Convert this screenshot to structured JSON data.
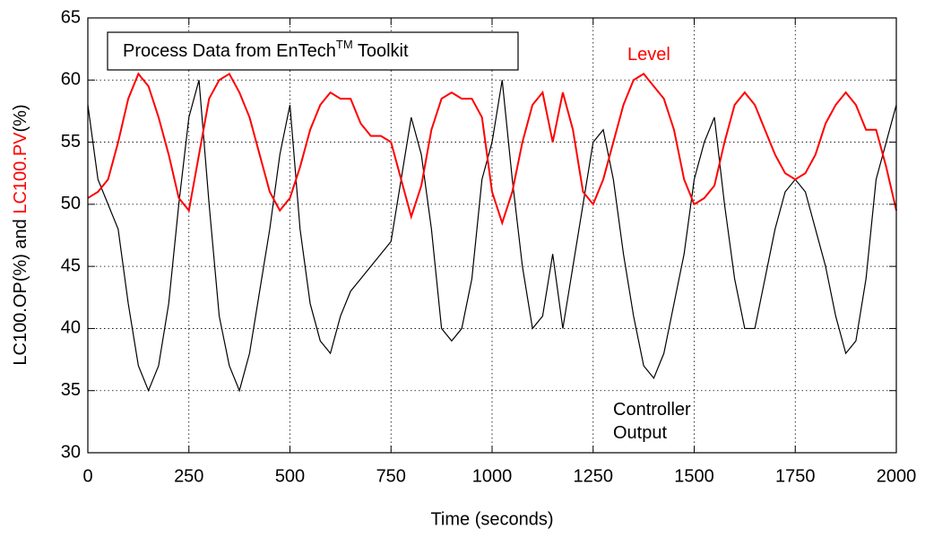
{
  "chart_data": {
    "type": "line",
    "title": [
      "Process Data from EnTech",
      "TM",
      " Toolkit"
    ],
    "xlabel": "Time (seconds)",
    "ylabel": [
      "LC100.OP(%) and ",
      "LC100.PV",
      "(%)"
    ],
    "annotations": [
      {
        "text": [
          "Level"
        ],
        "color": "#ff0000"
      },
      {
        "text": [
          "Controller",
          "Output"
        ],
        "color": "#000000"
      }
    ],
    "x": [
      0,
      25,
      50,
      75,
      100,
      125,
      150,
      175,
      200,
      225,
      250,
      275,
      300,
      325,
      350,
      375,
      400,
      425,
      450,
      475,
      500,
      525,
      550,
      575,
      600,
      625,
      650,
      675,
      700,
      725,
      750,
      775,
      800,
      825,
      850,
      875,
      900,
      925,
      950,
      975,
      1000,
      1025,
      1050,
      1075,
      1100,
      1125,
      1150,
      1175,
      1200,
      1225,
      1250,
      1275,
      1300,
      1325,
      1350,
      1375,
      1400,
      1425,
      1450,
      1475,
      1500,
      1525,
      1550,
      1575,
      1600,
      1625,
      1650,
      1675,
      1700,
      1725,
      1750,
      1775,
      1800,
      1825,
      1850,
      1875,
      1900,
      1925,
      1950,
      1975,
      2000
    ],
    "series": [
      {
        "color": "#000000",
        "values": [
          58,
          52,
          50,
          48,
          42,
          37,
          35,
          37,
          42,
          50,
          57,
          60,
          50,
          41,
          37,
          35,
          38,
          43,
          48,
          54,
          58,
          48,
          42,
          39,
          38,
          41,
          43,
          44,
          45,
          46,
          47,
          52,
          57,
          54,
          48,
          40,
          39,
          40,
          44,
          52,
          55,
          60,
          52,
          45,
          40,
          41,
          46,
          40,
          45,
          50,
          55,
          56,
          52,
          46,
          41,
          37,
          36,
          38,
          42,
          46,
          52,
          55,
          57,
          50,
          44,
          40,
          40,
          44,
          48,
          51,
          52,
          51,
          48,
          45,
          41,
          38,
          39,
          44,
          52,
          55,
          58
        ]
      },
      {
        "color": "#ff0000",
        "values": [
          50.5,
          51,
          52,
          55,
          58.5,
          60.5,
          59.5,
          57,
          54,
          50.5,
          49.5,
          54,
          58.5,
          60,
          60.5,
          59,
          57,
          54,
          51,
          49.5,
          50.5,
          53,
          56,
          58,
          59,
          58.5,
          58.5,
          56.5,
          55.5,
          55.5,
          55,
          52,
          49,
          51.5,
          56,
          58.5,
          59,
          58.5,
          58.5,
          57,
          51,
          48.5,
          51,
          55,
          58,
          59,
          55,
          59,
          56,
          51,
          50,
          52,
          55,
          58,
          60,
          60.5,
          59.5,
          58.5,
          56,
          52,
          50,
          50.5,
          51.5,
          55,
          58,
          59,
          58,
          56,
          54,
          52.5,
          52,
          52.5,
          54,
          56.5,
          58,
          59,
          58,
          56,
          56,
          53,
          49.5
        ]
      }
    ],
    "xlim": [
      0,
      2000
    ],
    "xticks": [
      0,
      250,
      500,
      750,
      1000,
      1250,
      1500,
      1750,
      2000
    ],
    "ylim": [
      30,
      65
    ],
    "yticks": [
      30,
      35,
      40,
      45,
      50,
      55,
      60,
      65
    ],
    "grid": true
  }
}
